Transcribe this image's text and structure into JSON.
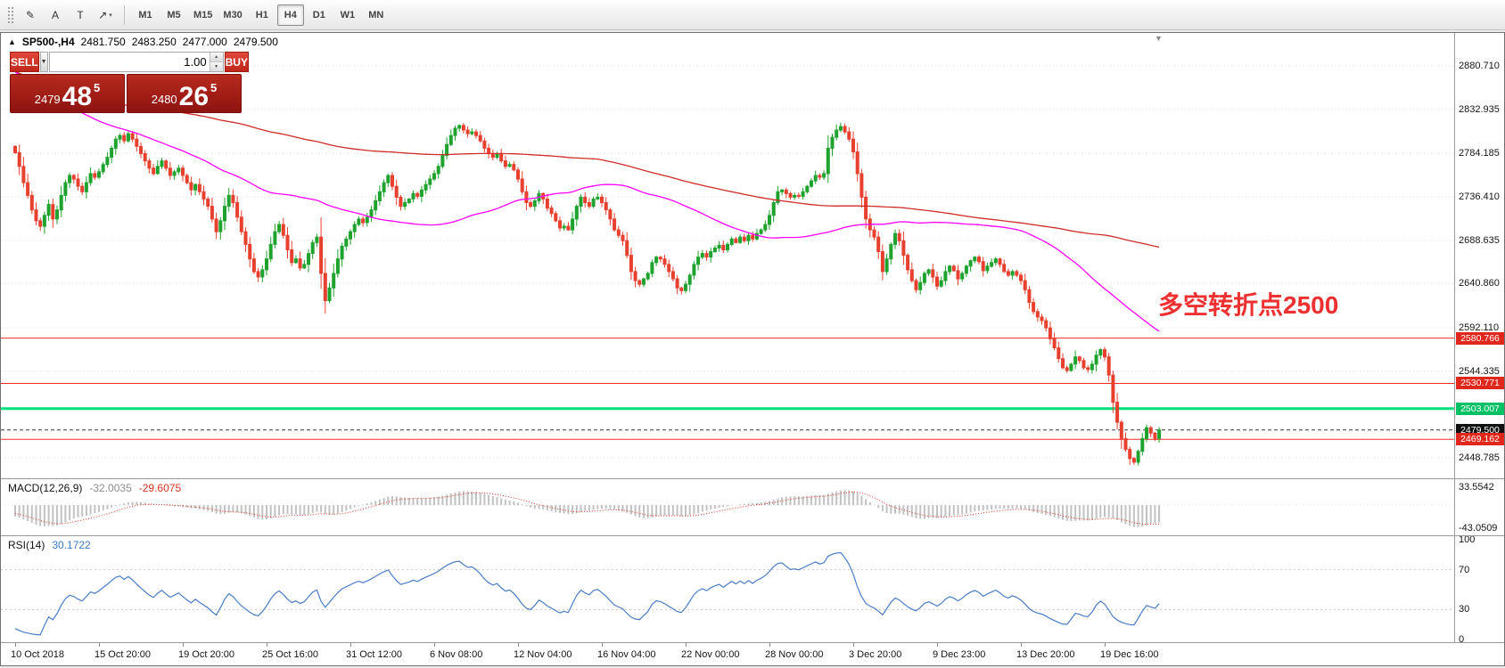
{
  "toolbar": {
    "tools": [
      {
        "name": "freehand-drawing-icon",
        "glyph": "✎",
        "has_dropdown": false
      },
      {
        "name": "text-label-tool-icon",
        "glyph": "A",
        "has_dropdown": false
      },
      {
        "name": "text-tool-icon",
        "glyph": "T",
        "has_dropdown": false
      },
      {
        "name": "drawing-objects-icon",
        "glyph": "↗",
        "has_dropdown": true
      }
    ],
    "timeframes": [
      "M1",
      "M5",
      "M15",
      "M30",
      "H1",
      "H4",
      "D1",
      "W1",
      "MN"
    ],
    "active_timeframe": "H4"
  },
  "chart_header": {
    "symbol": "SP500-,H4",
    "open": "2481.750",
    "high": "2483.250",
    "low": "2477.000",
    "close": "2479.500"
  },
  "trade_panel": {
    "sell_label": "SELL",
    "buy_label": "BUY",
    "volume": "1.00",
    "sell_price": {
      "prefix": "2479",
      "big": "48",
      "sup": "5"
    },
    "buy_price": {
      "prefix": "2480",
      "big": "26",
      "sup": "5"
    }
  },
  "annotation": {
    "text": "多空转折点2500",
    "color": "#ee3030"
  },
  "indicators": {
    "macd": {
      "label": "MACD(12,26,9)",
      "value_main": "-32.0035",
      "value_signal": "-29.6075",
      "axis_labels": [
        "33.5542",
        "-43.0509"
      ],
      "axis_values": [
        33.5542,
        -43.0509
      ]
    },
    "rsi": {
      "label": "RSI(14)",
      "value": "30.1722",
      "axis_labels": [
        "100",
        "70",
        "30",
        "0"
      ],
      "axis_values": [
        100,
        70,
        30,
        0
      ],
      "levels": [
        70,
        30
      ]
    }
  },
  "chart_data": {
    "type": "candlestick",
    "symbol": "SP500-",
    "timeframe": "H4",
    "last_ohlc": {
      "open": 2481.75,
      "high": 2483.25,
      "low": 2477.0,
      "close": 2479.5
    },
    "price_axis_labels": [
      "2880.710",
      "2832.935",
      "2784.185",
      "2736.410",
      "2688.635",
      "2640.860",
      "2592.110",
      "2544.335",
      "2448.785"
    ],
    "time_labels": [
      "10 Oct 2018",
      "15 Oct 20:00",
      "19 Oct 20:00",
      "25 Oct 16:00",
      "31 Oct 12:00",
      "6 Nov 08:00",
      "12 Nov 04:00",
      "16 Nov 04:00",
      "22 Nov 00:00",
      "28 Nov 00:00",
      "3 Dec 20:00",
      "9 Dec 23:00",
      "13 Dec 20:00",
      "19 Dec 16:00"
    ],
    "levels": [
      {
        "price": 2580.766,
        "label": "2580.766",
        "line_color": "#f52c20",
        "badge_bg": "#e0271c",
        "style": "solid",
        "width": 1
      },
      {
        "price": 2530.771,
        "label": "2530.771",
        "line_color": "#f52c20",
        "badge_bg": "#e0271c",
        "style": "solid",
        "width": 1
      },
      {
        "price": 2503.007,
        "label": "2503.007",
        "line_color": "#00e briefcase",
        "style": "solid",
        "width": 3
      },
      {
        "price": 2479.5,
        "label": "2479.500",
        "line_color": "#3a3a3a",
        "badge_bg": "#101010",
        "style": "dashed",
        "width": 1
      },
      {
        "price": 2469.162,
        "label": "2469.162",
        "line_color": "#f52c20",
        "badge_bg": "#e0271c",
        "style": "solid",
        "width": 1
      }
    ],
    "overlays": [
      {
        "name": "ma-slow-line",
        "type": "sma",
        "period": 200,
        "color": "#cf2b28"
      },
      {
        "name": "ma-fast-line",
        "type": "sma",
        "period": 60,
        "color": "#ff00ff"
      }
    ],
    "colors": {
      "up": "#1fa32e",
      "down": "#e8402f",
      "macd_histogram": "#c2c2c2",
      "macd_signal": "#dd3322",
      "rsi_line": "#4a7cc7"
    },
    "ma_warmup": [
      2913,
      2910,
      2906,
      2908,
      2912,
      2915,
      2910,
      2905,
      2902,
      2898,
      2903,
      2908,
      2905,
      2900,
      2896,
      2892,
      2888,
      2893,
      2898,
      2894,
      2890,
      2885,
      2880,
      2884,
      2889,
      2885,
      2881,
      2878,
      2882,
      2886,
      2883,
      2879,
      2875,
      2872,
      2876,
      2880,
      2877,
      2873,
      2870,
      2866,
      2870,
      2874,
      2871,
      2867,
      2863,
      2860,
      2864,
      2868,
      2864,
      2858,
      2852,
      2846,
      2840,
      2834,
      2828,
      2822,
      2816,
      2810,
      2802,
      2794
    ],
    "closes": [
      2785,
      2770,
      2752,
      2738,
      2722,
      2710,
      2704,
      2716,
      2728,
      2712,
      2722,
      2738,
      2752,
      2760,
      2756,
      2748,
      2742,
      2752,
      2762,
      2758,
      2764,
      2772,
      2780,
      2790,
      2800,
      2804,
      2798,
      2806,
      2800,
      2792,
      2784,
      2776,
      2768,
      2762,
      2770,
      2776,
      2768,
      2760,
      2764,
      2768,
      2760,
      2752,
      2744,
      2750,
      2742,
      2734,
      2726,
      2712,
      2698,
      2710,
      2726,
      2738,
      2730,
      2714,
      2698,
      2684,
      2668,
      2654,
      2648,
      2656,
      2668,
      2684,
      2698,
      2706,
      2694,
      2678,
      2664,
      2668,
      2658,
      2662,
      2674,
      2686,
      2692,
      2652,
      2622,
      2636,
      2652,
      2668,
      2682,
      2690,
      2698,
      2706,
      2712,
      2708,
      2714,
      2722,
      2732,
      2742,
      2752,
      2760,
      2748,
      2736,
      2726,
      2730,
      2734,
      2740,
      2737,
      2744,
      2750,
      2756,
      2762,
      2770,
      2782,
      2794,
      2804,
      2812,
      2815,
      2810,
      2806,
      2808,
      2804,
      2798,
      2790,
      2784,
      2780,
      2783,
      2776,
      2770,
      2772,
      2766,
      2756,
      2742,
      2730,
      2726,
      2732,
      2740,
      2734,
      2724,
      2718,
      2710,
      2702,
      2704,
      2700,
      2712,
      2726,
      2736,
      2730,
      2726,
      2734,
      2736,
      2730,
      2722,
      2712,
      2700,
      2694,
      2688,
      2672,
      2654,
      2644,
      2640,
      2646,
      2652,
      2664,
      2670,
      2668,
      2662,
      2654,
      2646,
      2636,
      2633,
      2640,
      2650,
      2662,
      2670,
      2674,
      2670,
      2676,
      2680,
      2683,
      2678,
      2684,
      2690,
      2686,
      2692,
      2688,
      2694,
      2690,
      2696,
      2700,
      2706,
      2716,
      2730,
      2742,
      2744,
      2740,
      2736,
      2738,
      2737,
      2742,
      2748,
      2754,
      2760,
      2758,
      2762,
      2790,
      2802,
      2810,
      2814,
      2808,
      2800,
      2786,
      2762,
      2736,
      2712,
      2700,
      2692,
      2676,
      2654,
      2668,
      2684,
      2696,
      2688,
      2672,
      2656,
      2644,
      2634,
      2642,
      2652,
      2656,
      2648,
      2638,
      2644,
      2654,
      2660,
      2655,
      2646,
      2652,
      2660,
      2666,
      2670,
      2665,
      2655,
      2660,
      2664,
      2668,
      2662,
      2654,
      2650,
      2654,
      2650,
      2644,
      2634,
      2620,
      2610,
      2604,
      2600,
      2592,
      2580,
      2570,
      2558,
      2548,
      2545,
      2552,
      2560,
      2556,
      2548,
      2546,
      2552,
      2562,
      2568,
      2560,
      2540,
      2510,
      2488,
      2470,
      2458,
      2448,
      2444,
      2456,
      2470,
      2482,
      2476,
      2470,
      2479.5
    ]
  }
}
